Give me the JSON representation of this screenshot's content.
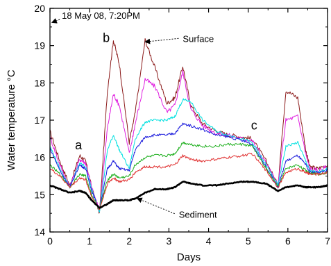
{
  "chart_data": {
    "type": "line",
    "title": "",
    "xlabel": "Days",
    "ylabel": "Water temperature °C",
    "xlim": [
      0,
      7
    ],
    "ylim": [
      14,
      20
    ],
    "x_ticks": [
      "0",
      "1",
      "2",
      "3",
      "4",
      "5",
      "6",
      "7"
    ],
    "y_ticks": [
      "14",
      "15",
      "16",
      "17",
      "18",
      "19",
      "20"
    ],
    "grid": false,
    "legend": "none",
    "x": [
      0,
      0.25,
      0.5,
      0.75,
      0.9,
      1.05,
      1.25,
      1.45,
      1.6,
      1.75,
      2.0,
      2.15,
      2.4,
      2.65,
      2.95,
      3.15,
      3.35,
      3.55,
      3.85,
      4.2,
      4.5,
      4.85,
      5.1,
      5.45,
      5.75,
      5.95,
      6.25,
      6.45,
      6.55,
      6.75,
      7.0
    ],
    "series": [
      {
        "color": "#8b1a1a",
        "values": [
          16.7,
          15.9,
          15.25,
          16.05,
          15.9,
          15.2,
          14.5,
          17.8,
          19.15,
          18.5,
          16.4,
          17.2,
          19.15,
          18.4,
          17.45,
          17.6,
          18.45,
          17.4,
          16.9,
          16.7,
          16.6,
          16.55,
          16.5,
          15.9,
          15.25,
          17.8,
          17.6,
          16.2,
          15.75,
          15.7,
          15.8
        ]
      },
      {
        "color": "#e020e0",
        "values": [
          16.55,
          15.8,
          15.2,
          15.95,
          15.85,
          15.2,
          14.55,
          16.8,
          17.7,
          17.4,
          16.1,
          16.9,
          18.1,
          17.9,
          17.2,
          17.4,
          18.3,
          17.3,
          16.85,
          16.65,
          16.6,
          16.5,
          16.45,
          15.85,
          15.25,
          17.0,
          17.1,
          16.1,
          15.7,
          15.65,
          15.75
        ]
      },
      {
        "color": "#00e0e0",
        "values": [
          16.3,
          15.7,
          15.2,
          15.85,
          15.75,
          15.15,
          14.55,
          16.2,
          16.6,
          16.2,
          15.7,
          16.5,
          16.95,
          17.0,
          17.0,
          17.1,
          17.55,
          17.5,
          17.0,
          16.7,
          16.6,
          16.5,
          16.4,
          15.8,
          15.25,
          16.3,
          16.4,
          15.9,
          15.65,
          15.6,
          15.7
        ]
      },
      {
        "color": "#1a1adc",
        "values": [
          16.25,
          15.65,
          15.2,
          15.8,
          15.7,
          15.1,
          14.6,
          15.7,
          15.9,
          15.7,
          15.65,
          16.2,
          16.55,
          16.6,
          16.6,
          16.65,
          16.9,
          16.85,
          16.75,
          16.6,
          16.55,
          16.45,
          16.35,
          15.75,
          15.2,
          15.9,
          16.05,
          15.8,
          15.6,
          15.6,
          15.65
        ]
      },
      {
        "color": "#20b020",
        "values": [
          15.8,
          15.55,
          15.2,
          15.55,
          15.5,
          15.0,
          14.6,
          15.4,
          15.55,
          15.45,
          15.5,
          15.8,
          16.0,
          16.05,
          16.05,
          16.1,
          16.4,
          16.35,
          16.3,
          16.3,
          16.35,
          16.35,
          16.3,
          15.7,
          15.2,
          15.7,
          15.8,
          15.65,
          15.6,
          15.55,
          15.6
        ]
      },
      {
        "color": "#e03030",
        "values": [
          15.7,
          15.5,
          15.2,
          15.45,
          15.4,
          14.95,
          14.6,
          15.3,
          15.45,
          15.35,
          15.4,
          15.6,
          15.75,
          15.75,
          15.75,
          15.8,
          16.05,
          15.95,
          15.9,
          15.95,
          16.0,
          16.05,
          16.1,
          15.65,
          15.2,
          15.6,
          15.7,
          15.6,
          15.55,
          15.55,
          15.6
        ]
      },
      {
        "color": "#000000",
        "values": [
          15.25,
          15.15,
          15.05,
          15.1,
          15.05,
          14.85,
          14.65,
          14.75,
          14.85,
          14.85,
          14.85,
          14.9,
          15.05,
          15.15,
          15.15,
          15.2,
          15.35,
          15.3,
          15.25,
          15.25,
          15.3,
          15.35,
          15.35,
          15.3,
          15.1,
          15.2,
          15.25,
          15.2,
          15.2,
          15.2,
          15.25
        ]
      }
    ],
    "annotations": [
      {
        "id": "date",
        "text": "18 May 08, 7:20PM",
        "x": 0.3,
        "y": 19.72,
        "arrow_to": [
          0.05,
          19.62
        ]
      },
      {
        "id": "a",
        "text": "a",
        "x": 0.72,
        "y": 16.22
      },
      {
        "id": "b",
        "text": "b",
        "x": 1.42,
        "y": 19.1
      },
      {
        "id": "c",
        "text": "c",
        "x": 5.15,
        "y": 16.75
      },
      {
        "id": "surface",
        "text": "Surface",
        "x": 3.35,
        "y": 19.1,
        "arrow_to": [
          2.4,
          19.1
        ]
      },
      {
        "id": "sediment",
        "text": "Sediment",
        "x": 3.25,
        "y": 14.38,
        "arrow_to": [
          2.2,
          14.9
        ]
      }
    ]
  }
}
